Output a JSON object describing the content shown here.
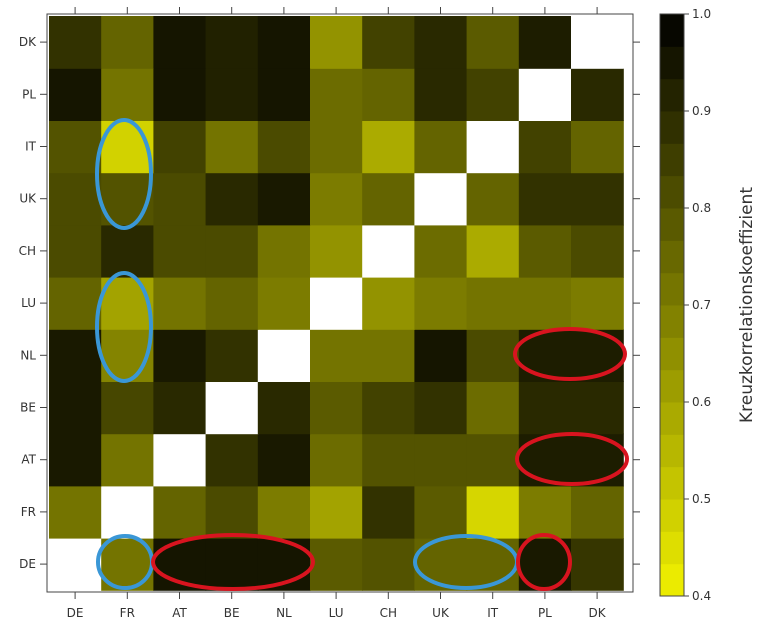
{
  "chart_data": {
    "type": "heatmap",
    "title": "",
    "xlabel": "",
    "ylabel": "",
    "x_categories": [
      "DE",
      "FR",
      "AT",
      "BE",
      "NL",
      "LU",
      "CH",
      "UK",
      "IT",
      "PL",
      "DK"
    ],
    "y_categories": [
      "DE",
      "FR",
      "AT",
      "BE",
      "NL",
      "LU",
      "CH",
      "UK",
      "IT",
      "PL",
      "DK"
    ],
    "value_range": [
      0.4,
      1.0
    ],
    "colorbar": {
      "label": "Kreuzkorrelationskoeffizient",
      "ticks": [
        "0.4",
        "0.5",
        "0.6",
        "0.7",
        "0.8",
        "0.9",
        "1.0"
      ],
      "levels": 18
    },
    "matrix_rows_DE_to_DK": [
      [
        1.0,
        0.72,
        0.95,
        0.95,
        0.95,
        0.78,
        0.8,
        0.76,
        0.76,
        0.94,
        0.87
      ],
      [
        0.72,
        1.0,
        0.76,
        0.82,
        0.7,
        0.6,
        0.88,
        0.78,
        0.47,
        0.7,
        0.76
      ],
      [
        0.94,
        0.72,
        1.0,
        0.88,
        0.94,
        0.74,
        0.8,
        0.8,
        0.8,
        0.93,
        0.93
      ],
      [
        0.94,
        0.83,
        0.9,
        1.0,
        0.9,
        0.78,
        0.84,
        0.88,
        0.74,
        0.9,
        0.9
      ],
      [
        0.94,
        0.68,
        0.94,
        0.88,
        1.0,
        0.72,
        0.72,
        0.95,
        0.82,
        0.93,
        0.93
      ],
      [
        0.76,
        0.6,
        0.72,
        0.76,
        0.7,
        1.0,
        0.64,
        0.7,
        0.72,
        0.72,
        0.7
      ],
      [
        0.82,
        0.9,
        0.82,
        0.82,
        0.72,
        0.64,
        1.0,
        0.74,
        0.58,
        0.78,
        0.82
      ],
      [
        0.82,
        0.8,
        0.82,
        0.9,
        0.94,
        0.7,
        0.76,
        1.0,
        0.76,
        0.88,
        0.88
      ],
      [
        0.8,
        0.48,
        0.84,
        0.72,
        0.82,
        0.74,
        0.58,
        0.76,
        1.0,
        0.84,
        0.76
      ],
      [
        0.95,
        0.72,
        0.95,
        0.92,
        0.95,
        0.74,
        0.76,
        0.9,
        0.84,
        1.0,
        0.9
      ],
      [
        0.88,
        0.76,
        0.95,
        0.92,
        0.95,
        0.64,
        0.84,
        0.9,
        0.78,
        0.93,
        1.0
      ]
    ],
    "annotations": {
      "blue": [
        {
          "shape": "ellipse",
          "col": "FR",
          "row": "DE",
          "span": 1
        },
        {
          "shape": "ellipse",
          "col": "FR",
          "row_from": "NL",
          "row_to": "LU"
        },
        {
          "shape": "ellipse",
          "col": "FR",
          "row_from": "UK",
          "row_to": "IT"
        },
        {
          "shape": "ellipse",
          "row": "DE",
          "col_from": "UK",
          "col_to": "UK"
        }
      ],
      "red": [
        {
          "shape": "ellipse",
          "row": "DE",
          "col_from": "AT",
          "col_to": "NL"
        },
        {
          "shape": "ellipse",
          "row": "DE",
          "col": "PL"
        },
        {
          "shape": "ellipse",
          "row": "AT",
          "col": "PL-DK"
        },
        {
          "shape": "ellipse",
          "row": "NL",
          "col": "PL-DK"
        }
      ]
    },
    "colors": {
      "low": "#f2f200",
      "high": "#000000",
      "diagonal": "#ffffff",
      "blue_marker": "#3a97d6",
      "red_marker": "#d8141f"
    }
  }
}
